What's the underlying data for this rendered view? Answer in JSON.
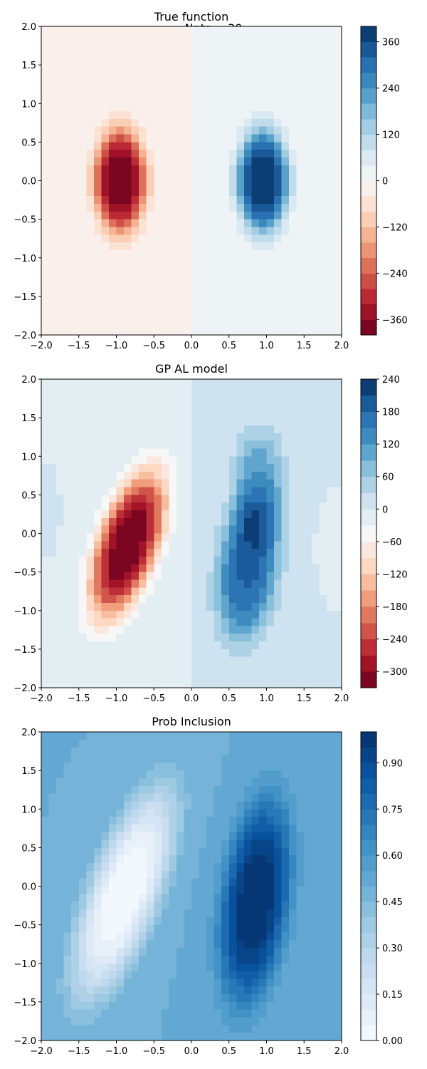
{
  "suptitle": "Npts = 30",
  "chart_data": [
    {
      "type": "contour",
      "title": "True function",
      "xlim": [
        -2,
        2
      ],
      "ylim": [
        -2,
        2
      ],
      "xticks": [
        -2.0,
        -1.5,
        -1.0,
        -0.5,
        0.0,
        0.5,
        1.0,
        1.5,
        2.0
      ],
      "yticks": [
        -2.0,
        -1.5,
        -1.0,
        -0.5,
        0.0,
        0.5,
        1.0,
        1.5,
        2.0
      ],
      "colormap": "RdBu",
      "colorbar": {
        "range": [
          -400,
          400
        ],
        "levels": 20,
        "ticks": [
          -360,
          -240,
          -120,
          0,
          120,
          240,
          360
        ]
      },
      "features": [
        {
          "x": -0.95,
          "y": 0.0,
          "peak": -395,
          "sx": 0.28,
          "sy": 0.55
        },
        {
          "x": 0.95,
          "y": 0.0,
          "peak": 395,
          "sx": 0.28,
          "sy": 0.55
        }
      ],
      "background": [
        -5,
        5
      ]
    },
    {
      "type": "contour",
      "title": "GP AL model",
      "xlim": [
        -2,
        2
      ],
      "ylim": [
        -2,
        2
      ],
      "xticks": [
        -2.0,
        -1.5,
        -1.0,
        -0.5,
        0.0,
        0.5,
        1.0,
        1.5,
        2.0
      ],
      "yticks": [
        -2.0,
        -1.5,
        -1.0,
        -0.5,
        0.0,
        0.5,
        1.0,
        1.5,
        2.0
      ],
      "colormap": "RdBu",
      "colorbar": {
        "range": [
          -330,
          240
        ],
        "levels": 19,
        "ticks": [
          -300,
          -240,
          -180,
          -120,
          -60,
          0,
          60,
          120,
          180,
          240
        ]
      },
      "features": [
        {
          "x": -0.85,
          "y": -0.15,
          "peak": -320,
          "sx": 0.33,
          "sy": 0.75,
          "tilt": 0.3
        },
        {
          "x": 0.75,
          "y": -0.45,
          "peak": 175,
          "sx": 0.32,
          "sy": 0.75,
          "tilt": 0.1
        },
        {
          "x": 0.9,
          "y": 0.6,
          "peak": 100,
          "sx": 0.28,
          "sy": 0.6,
          "tilt": 0.0
        },
        {
          "x": 1.9,
          "y": -0.2,
          "peak": -25,
          "sx": 0.2,
          "sy": 0.6,
          "tilt": 0.0
        },
        {
          "x": -1.95,
          "y": 0.3,
          "peak": 15,
          "sx": 0.2,
          "sy": 0.6,
          "tilt": 0.0
        }
      ],
      "background": [
        -8,
        8
      ]
    },
    {
      "type": "contour",
      "title": "Prob Inclusion",
      "xlim": [
        -2,
        2
      ],
      "ylim": [
        -2,
        2
      ],
      "xticks": [
        -2.0,
        -1.5,
        -1.0,
        -0.5,
        0.0,
        0.5,
        1.0,
        1.5,
        2.0
      ],
      "yticks": [
        -2.0,
        -1.5,
        -1.0,
        -0.5,
        0.0,
        0.5,
        1.0,
        1.5,
        2.0
      ],
      "colormap": "Blues",
      "colorbar": {
        "range": [
          0.0,
          1.0
        ],
        "levels": 20,
        "ticks": [
          0.0,
          0.15,
          0.3,
          0.45,
          0.6,
          0.75,
          0.9
        ]
      },
      "features": [
        {
          "x": -0.9,
          "y": -0.1,
          "peak": -0.5,
          "sx": 0.38,
          "sy": 1.05,
          "tilt": 0.35
        },
        {
          "x": 0.85,
          "y": -0.2,
          "peak": 0.5,
          "sx": 0.36,
          "sy": 1.05,
          "tilt": 0.12
        }
      ],
      "background": [
        0.5,
        0.5
      ]
    }
  ]
}
